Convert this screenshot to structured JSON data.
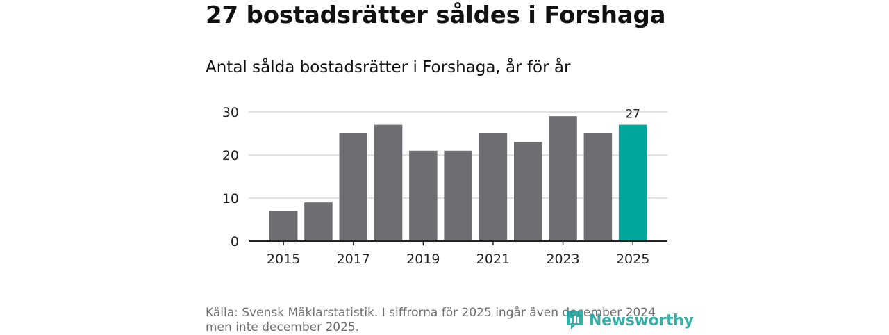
{
  "header": {
    "title": "27 bostadsrätter såldes i Forshaga",
    "subtitle": "Antal sålda bostadsrätter i Forshaga, år för år"
  },
  "footer": {
    "source_line1": "Källa: Svensk Mäklarstatistik. I siffrorna för 2025 ingår även december 2024",
    "source_line2": "men inte december 2025.",
    "logo_text": "Newsworthy",
    "logo_icon": "newsworthy-logo-icon"
  },
  "colors": {
    "bar": "#6e6d72",
    "highlight": "#00a69c",
    "grid": "#d9d9d9",
    "axis": "#222222",
    "brand": "#15a19a"
  },
  "chart_data": {
    "type": "bar",
    "title": "Antal sålda bostadsrätter i Forshaga, år för år",
    "xlabel": "",
    "ylabel": "",
    "categories": [
      "2015",
      "2016",
      "2017",
      "2018",
      "2019",
      "2020",
      "2021",
      "2022",
      "2023",
      "2024",
      "2025"
    ],
    "values": [
      7,
      9,
      25,
      27,
      21,
      21,
      25,
      23,
      29,
      25,
      27
    ],
    "highlight_index": 10,
    "highlight_label": "27",
    "ylim": [
      0,
      30
    ],
    "yticks": [
      0,
      10,
      20,
      30
    ],
    "xtick_labels": [
      "2015",
      "2017",
      "2019",
      "2021",
      "2023",
      "2025"
    ],
    "grid": true
  }
}
